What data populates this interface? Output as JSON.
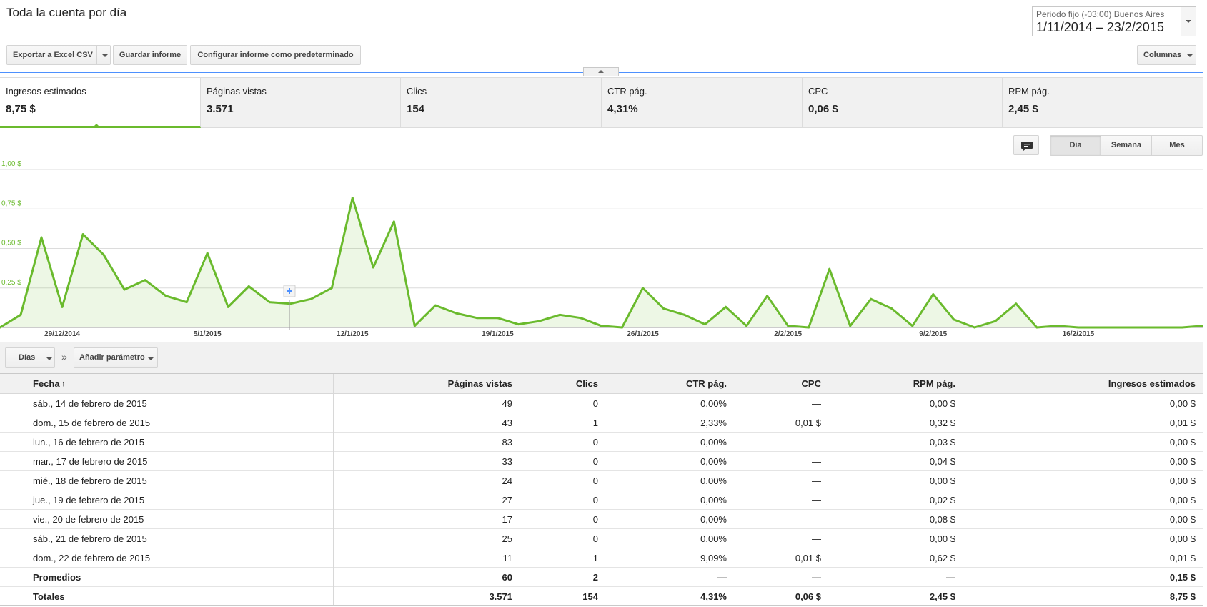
{
  "page_title": "Toda la cuenta por día",
  "date_range": {
    "label": "Periodo fijo (-03:00) Buenos Aires",
    "value": "1/11/2014 – 23/2/2015"
  },
  "toolbar": {
    "export_label": "Exportar a Excel CSV",
    "save_label": "Guardar informe",
    "default_label": "Configurar informe como predeterminado",
    "columns_label": "Columnas"
  },
  "metrics": [
    {
      "name": "Ingresos estimados",
      "value": "8,75 $"
    },
    {
      "name": "Páginas vistas",
      "value": "3.571"
    },
    {
      "name": "Clics",
      "value": "154"
    },
    {
      "name": "CTR pág.",
      "value": "4,31%"
    },
    {
      "name": "CPC",
      "value": "0,06 $"
    },
    {
      "name": "RPM pág.",
      "value": "2,45 $"
    }
  ],
  "granularity": {
    "day": "Día",
    "week": "Semana",
    "month": "Mes",
    "selected": "Día"
  },
  "chart_data": {
    "type": "area",
    "color": "#6aba2d",
    "ylim": [
      0,
      1.0
    ],
    "y_ticks": [
      1.0,
      0.75,
      0.5,
      0.25
    ],
    "y_tick_labels": [
      "1,00 $",
      "0,75 $",
      "0,50 $",
      "0,25 $"
    ],
    "x_ticks": [
      {
        "index": 3,
        "label": "29/12/2014"
      },
      {
        "index": 10,
        "label": "5/1/2015"
      },
      {
        "index": 17,
        "label": "12/1/2015"
      },
      {
        "index": 24,
        "label": "19/1/2015"
      },
      {
        "index": 31,
        "label": "26/1/2015"
      },
      {
        "index": 38,
        "label": "2/2/2015"
      },
      {
        "index": 45,
        "label": "9/2/2015"
      },
      {
        "index": 52,
        "label": "16/2/2015"
      }
    ],
    "series": [
      {
        "values": [
          0.0,
          0.08,
          0.57,
          0.13,
          0.59,
          0.46,
          0.24,
          0.3,
          0.2,
          0.16,
          0.47,
          0.13,
          0.26,
          0.16,
          0.15,
          0.18,
          0.25,
          0.82,
          0.38,
          0.67,
          0.01,
          0.14,
          0.09,
          0.06,
          0.06,
          0.02,
          0.04,
          0.08,
          0.06,
          0.01,
          0.0,
          0.25,
          0.12,
          0.08,
          0.02,
          0.13,
          0.01,
          0.2,
          0.01,
          0.0,
          0.37,
          0.01,
          0.18,
          0.12,
          0.01,
          0.21,
          0.05,
          0.0,
          0.04,
          0.15,
          0.0,
          0.01,
          0.0,
          0.0,
          0.0,
          0.0,
          0.0,
          0.0,
          0.01
        ]
      }
    ]
  },
  "filters": {
    "dimension": "Días",
    "add_param": "Añadir parámetro"
  },
  "table": {
    "headers": [
      "Fecha",
      "Páginas vistas",
      "Clics",
      "CTR pág.",
      "CPC",
      "RPM pág.",
      "Ingresos estimados"
    ],
    "rows": [
      [
        "sáb., 14 de febrero de 2015",
        "49",
        "0",
        "0,00%",
        "—",
        "0,00 $",
        "0,00 $"
      ],
      [
        "dom., 15 de febrero de 2015",
        "43",
        "1",
        "2,33%",
        "0,01 $",
        "0,32 $",
        "0,01 $"
      ],
      [
        "lun., 16 de febrero de 2015",
        "83",
        "0",
        "0,00%",
        "—",
        "0,03 $",
        "0,00 $"
      ],
      [
        "mar., 17 de febrero de 2015",
        "33",
        "0",
        "0,00%",
        "—",
        "0,04 $",
        "0,00 $"
      ],
      [
        "mié., 18 de febrero de 2015",
        "24",
        "0",
        "0,00%",
        "—",
        "0,00 $",
        "0,00 $"
      ],
      [
        "jue., 19 de febrero de 2015",
        "27",
        "0",
        "0,00%",
        "—",
        "0,02 $",
        "0,00 $"
      ],
      [
        "vie., 20 de febrero de 2015",
        "17",
        "0",
        "0,00%",
        "—",
        "0,08 $",
        "0,00 $"
      ],
      [
        "sáb., 21 de febrero de 2015",
        "25",
        "0",
        "0,00%",
        "—",
        "0,00 $",
        "0,00 $"
      ],
      [
        "dom., 22 de febrero de 2015",
        "11",
        "1",
        "9,09%",
        "0,01 $",
        "0,62 $",
        "0,01 $"
      ]
    ],
    "averages": [
      "Promedios",
      "60",
      "2",
      "—",
      "—",
      "—",
      "0,15 $"
    ],
    "totals": [
      "Totales",
      "3.571",
      "154",
      "4,31%",
      "0,06 $",
      "2,45 $",
      "8,75 $"
    ]
  }
}
